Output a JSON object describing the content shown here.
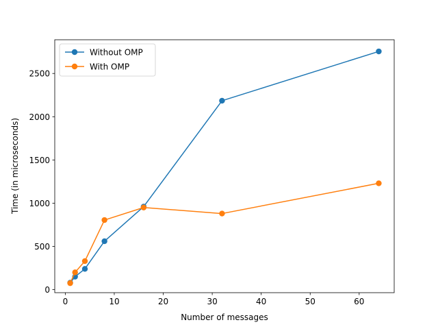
{
  "chart_data": {
    "type": "line",
    "title": "",
    "xlabel": "Number of messages",
    "ylabel": "Time (in microseconds)",
    "xlim": [
      -2.15,
      67.15
    ],
    "ylim": [
      -35,
      2890
    ],
    "x_ticks": [
      0,
      10,
      20,
      30,
      40,
      50,
      60
    ],
    "y_ticks": [
      0,
      500,
      1000,
      1500,
      2000,
      2500
    ],
    "grid": false,
    "legend_position": "upper-left",
    "series": [
      {
        "name": "Without OMP",
        "color": "#1f77b4",
        "x": [
          1,
          2,
          4,
          8,
          16,
          32,
          64
        ],
        "y": [
          80,
          150,
          240,
          560,
          960,
          2185,
          2755
        ]
      },
      {
        "name": "With OMP",
        "color": "#ff7f0e",
        "x": [
          1,
          2,
          4,
          8,
          16,
          32,
          64
        ],
        "y": [
          75,
          200,
          330,
          805,
          950,
          880,
          1230
        ]
      }
    ]
  }
}
